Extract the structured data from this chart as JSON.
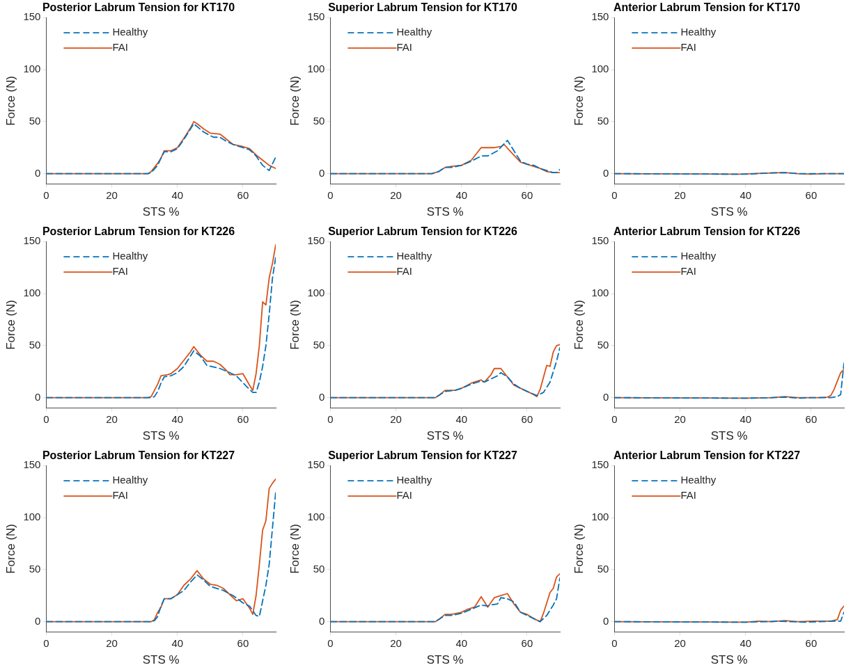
{
  "chart_data": [
    {
      "type": "line",
      "title": "Posterior Labrum Tension for KT170",
      "xlabel": "STS %",
      "ylabel": "Force (N)",
      "xlim": [
        0,
        70
      ],
      "ylim": [
        -10,
        150
      ],
      "xticks": [
        0,
        20,
        40,
        60
      ],
      "yticks": [
        0,
        50,
        100,
        150
      ],
      "legend": "top left",
      "series": [
        {
          "name": "Healthy",
          "color": "#0072bd",
          "line_style": "dashed",
          "x": [
            0,
            31,
            32,
            34,
            35,
            36,
            38,
            40,
            42,
            45,
            48,
            51,
            53,
            55,
            57,
            60,
            62,
            64,
            66,
            68,
            70
          ],
          "values": [
            0,
            0,
            1,
            8,
            15,
            21,
            21,
            24,
            33,
            48,
            40,
            35,
            35,
            31,
            28,
            25,
            23,
            17,
            8,
            3,
            16
          ]
        },
        {
          "name": "FAI",
          "color": "#d95319",
          "line_style": "solid",
          "x": [
            0,
            31,
            32,
            34,
            35,
            36,
            38,
            40,
            42,
            44,
            45,
            46,
            48,
            50,
            53,
            55,
            57,
            60,
            62,
            64,
            66,
            68,
            70
          ],
          "values": [
            0,
            0,
            2,
            10,
            15,
            22,
            22,
            25,
            34,
            44,
            50,
            48,
            43,
            39,
            38,
            33,
            28,
            26,
            24,
            18,
            13,
            8,
            5
          ]
        }
      ]
    },
    {
      "type": "line",
      "title": "Superior Labrum Tension for KT170",
      "xlabel": "STS %",
      "ylabel": "Force (N)",
      "xlim": [
        0,
        70
      ],
      "ylim": [
        -10,
        150
      ],
      "xticks": [
        0,
        20,
        40,
        60
      ],
      "yticks": [
        0,
        50,
        100,
        150
      ],
      "legend": "top left",
      "series": [
        {
          "name": "Healthy",
          "color": "#0072bd",
          "line_style": "dashed",
          "x": [
            0,
            31,
            33,
            35,
            37,
            40,
            43,
            46,
            48,
            51,
            54,
            56,
            58,
            60,
            62,
            64,
            66,
            68,
            69,
            70
          ],
          "values": [
            0,
            0,
            2,
            6,
            6,
            8,
            12,
            17,
            17,
            22,
            32,
            22,
            12,
            9,
            8,
            5,
            3,
            1,
            1,
            4
          ]
        },
        {
          "name": "FAI",
          "color": "#d95319",
          "line_style": "solid",
          "x": [
            0,
            31,
            33,
            35,
            37,
            40,
            43,
            46,
            48,
            50,
            52,
            53,
            55,
            58,
            60,
            62,
            64,
            66,
            68,
            70
          ],
          "values": [
            0,
            0,
            2,
            6,
            7,
            8,
            13,
            25,
            25,
            25,
            26,
            28,
            21,
            11,
            9,
            7,
            5,
            2,
            1,
            1
          ]
        }
      ]
    },
    {
      "type": "line",
      "title": "Anterior Labrum Tension for KT170",
      "xlabel": "STS %",
      "ylabel": "Force (N)",
      "xlim": [
        0,
        70
      ],
      "ylim": [
        -10,
        150
      ],
      "xticks": [
        0,
        20,
        40,
        60
      ],
      "yticks": [
        0,
        50,
        100,
        150
      ],
      "legend": "top left",
      "series": [
        {
          "name": "Healthy",
          "color": "#0072bd",
          "line_style": "dashed",
          "x": [
            0,
            40,
            44,
            46,
            52,
            56,
            60,
            64,
            70
          ],
          "values": [
            0,
            -0.5,
            0,
            0.5,
            1,
            0,
            0,
            0,
            0
          ]
        },
        {
          "name": "FAI",
          "color": "#d95319",
          "line_style": "solid",
          "x": [
            0,
            38,
            42,
            46,
            52,
            56,
            60,
            64,
            70
          ],
          "values": [
            0,
            -0.5,
            0,
            0.5,
            1,
            0,
            -0.5,
            0,
            0
          ]
        }
      ]
    },
    {
      "type": "line",
      "title": "Posterior Labrum Tension for KT226",
      "xlabel": "STS %",
      "ylabel": "Force (N)",
      "xlim": [
        0,
        70
      ],
      "ylim": [
        -10,
        150
      ],
      "xticks": [
        0,
        20,
        40,
        60
      ],
      "yticks": [
        0,
        50,
        100,
        150
      ],
      "legend": "top left",
      "series": [
        {
          "name": "Healthy",
          "color": "#0072bd",
          "line_style": "dashed",
          "x": [
            0,
            32,
            33,
            34,
            35,
            36,
            38,
            40,
            42,
            44,
            45,
            47,
            49,
            53,
            56,
            58,
            61,
            63,
            64,
            65,
            66,
            67,
            68,
            69,
            70
          ],
          "values": [
            0,
            0,
            1,
            6,
            14,
            20,
            21,
            24,
            30,
            40,
            45,
            40,
            31,
            28,
            24,
            21,
            11,
            5,
            5,
            15,
            30,
            50,
            80,
            115,
            135
          ]
        },
        {
          "name": "FAI",
          "color": "#d95319",
          "line_style": "solid",
          "x": [
            0,
            31,
            32,
            33,
            34,
            35,
            37,
            38,
            40,
            42,
            44,
            45,
            47,
            49,
            51,
            53,
            55,
            56,
            58,
            60,
            62,
            63,
            64,
            65,
            66,
            67,
            68,
            69,
            70
          ],
          "values": [
            0,
            0,
            1,
            7,
            13,
            21,
            22,
            23,
            28,
            36,
            44,
            49,
            41,
            35,
            35,
            32,
            26,
            22,
            22,
            23,
            12,
            7,
            23,
            50,
            92,
            89,
            115,
            129,
            147
          ]
        }
      ]
    },
    {
      "type": "line",
      "title": "Superior Labrum Tension for KT226",
      "xlabel": "STS %",
      "ylabel": "Force (N)",
      "xlim": [
        0,
        70
      ],
      "ylim": [
        -10,
        150
      ],
      "xticks": [
        0,
        20,
        40,
        60
      ],
      "yticks": [
        0,
        50,
        100,
        150
      ],
      "legend": "top left",
      "series": [
        {
          "name": "Healthy",
          "color": "#0072bd",
          "line_style": "dashed",
          "x": [
            0,
            32,
            33,
            35,
            38,
            40,
            43,
            46,
            47,
            49,
            51,
            52,
            54,
            56,
            58,
            60,
            63,
            65,
            67,
            69,
            70
          ],
          "values": [
            0,
            0,
            2,
            6,
            7,
            9,
            13,
            16,
            15,
            18,
            21,
            24,
            20,
            13,
            9,
            6,
            2,
            5,
            15,
            35,
            48
          ]
        },
        {
          "name": "FAI",
          "color": "#d95319",
          "line_style": "solid",
          "x": [
            0,
            32,
            33,
            35,
            38,
            40,
            43,
            46,
            47,
            49,
            50,
            52,
            54,
            56,
            58,
            60,
            62,
            63,
            64,
            66,
            67,
            68,
            69,
            70
          ],
          "values": [
            0,
            0,
            2,
            7,
            7,
            9,
            14,
            17,
            15,
            22,
            28,
            28,
            20,
            12,
            9,
            6,
            3,
            1,
            8,
            31,
            30,
            44,
            50,
            51
          ]
        }
      ]
    },
    {
      "type": "line",
      "title": "Anterior Labrum Tension for KT226",
      "xlabel": "STS %",
      "ylabel": "Force (N)",
      "xlim": [
        0,
        70
      ],
      "ylim": [
        -10,
        150
      ],
      "xticks": [
        0,
        20,
        40,
        60
      ],
      "yticks": [
        0,
        50,
        100,
        150
      ],
      "legend": "top left",
      "series": [
        {
          "name": "Healthy",
          "color": "#0072bd",
          "line_style": "dashed",
          "x": [
            0,
            40,
            48,
            52,
            56,
            60,
            66,
            68,
            69,
            70
          ],
          "values": [
            0,
            -0.5,
            0,
            0.5,
            -0.5,
            0,
            0,
            1,
            3,
            33
          ]
        },
        {
          "name": "FAI",
          "color": "#d95319",
          "line_style": "solid",
          "x": [
            0,
            40,
            48,
            52,
            56,
            62,
            65,
            66,
            67,
            68,
            69,
            70
          ],
          "values": [
            0,
            -0.5,
            0,
            1,
            0,
            0,
            0.5,
            2,
            8,
            16,
            24,
            27
          ]
        }
      ]
    },
    {
      "type": "line",
      "title": "Posterior Labrum Tension for KT227",
      "xlabel": "STS %",
      "ylabel": "Force (N)",
      "xlim": [
        0,
        70
      ],
      "ylim": [
        -10,
        150
      ],
      "xticks": [
        0,
        20,
        40,
        60
      ],
      "yticks": [
        0,
        50,
        100,
        150
      ],
      "legend": "top left",
      "series": [
        {
          "name": "Healthy",
          "color": "#0072bd",
          "line_style": "dashed",
          "x": [
            0,
            32,
            33,
            34,
            35,
            36,
            38,
            40,
            42,
            44,
            46,
            48,
            50,
            54,
            57,
            60,
            62,
            64,
            65,
            66,
            67,
            68,
            69,
            70
          ],
          "values": [
            0,
            0,
            1,
            5,
            15,
            22,
            22,
            26,
            30,
            38,
            45,
            40,
            34,
            30,
            25,
            18,
            15,
            6,
            5,
            20,
            35,
            55,
            90,
            125
          ]
        },
        {
          "name": "FAI",
          "color": "#d95319",
          "line_style": "solid",
          "x": [
            0,
            32,
            33,
            34,
            35,
            36,
            38,
            40,
            42,
            44,
            46,
            48,
            50,
            52,
            54,
            56,
            58,
            60,
            62,
            63,
            64,
            65,
            66,
            67,
            68,
            69,
            70
          ],
          "values": [
            0,
            0,
            2,
            9,
            14,
            22,
            22,
            26,
            35,
            41,
            49,
            41,
            36,
            35,
            32,
            26,
            20,
            22,
            13,
            7,
            25,
            55,
            88,
            97,
            128,
            133,
            137
          ]
        }
      ]
    },
    {
      "type": "line",
      "title": "Superior Labrum Tension for KT227",
      "xlabel": "STS %",
      "ylabel": "Force (N)",
      "xlim": [
        0,
        70
      ],
      "ylim": [
        -10,
        150
      ],
      "xticks": [
        0,
        20,
        40,
        60
      ],
      "yticks": [
        0,
        50,
        100,
        150
      ],
      "legend": "top left",
      "series": [
        {
          "name": "Healthy",
          "color": "#0072bd",
          "line_style": "dashed",
          "x": [
            0,
            32,
            33,
            35,
            37,
            40,
            43,
            46,
            48,
            49,
            51,
            52,
            54,
            56,
            58,
            60,
            62,
            64,
            66,
            68,
            69,
            70
          ],
          "values": [
            0,
            0,
            2,
            6,
            6,
            8,
            12,
            16,
            15,
            16,
            17,
            23,
            22,
            19,
            9,
            6,
            3,
            0,
            6,
            16,
            22,
            42
          ]
        },
        {
          "name": "FAI",
          "color": "#d95319",
          "line_style": "solid",
          "x": [
            0,
            32,
            33,
            35,
            37,
            40,
            42,
            44,
            46,
            48,
            50,
            52,
            54,
            56,
            58,
            60,
            62,
            64,
            65,
            67,
            68,
            69,
            70
          ],
          "values": [
            0,
            0,
            2,
            7,
            7,
            9,
            12,
            14,
            24,
            14,
            23,
            25,
            27,
            17,
            9,
            7,
            3,
            0,
            8,
            28,
            32,
            43,
            46
          ]
        }
      ]
    },
    {
      "type": "line",
      "title": "Anterior Labrum Tension for KT227",
      "xlabel": "STS %",
      "ylabel": "Force (N)",
      "xlim": [
        0,
        70
      ],
      "ylim": [
        -10,
        150
      ],
      "xticks": [
        0,
        20,
        40,
        60
      ],
      "yticks": [
        0,
        50,
        100,
        150
      ],
      "legend": "top left",
      "series": [
        {
          "name": "Healthy",
          "color": "#0072bd",
          "line_style": "dashed",
          "x": [
            0,
            40,
            46,
            50,
            54,
            58,
            62,
            68,
            69,
            70
          ],
          "values": [
            0,
            -0.5,
            0,
            0.5,
            0,
            -0.5,
            0,
            0.5,
            0.5,
            9
          ]
        },
        {
          "name": "FAI",
          "color": "#d95319",
          "line_style": "solid",
          "x": [
            0,
            40,
            44,
            48,
            52,
            56,
            60,
            66,
            68,
            69,
            70
          ],
          "values": [
            0,
            -0.5,
            0.5,
            0,
            1,
            0,
            0.5,
            0.5,
            2,
            11,
            15
          ]
        }
      ]
    }
  ]
}
